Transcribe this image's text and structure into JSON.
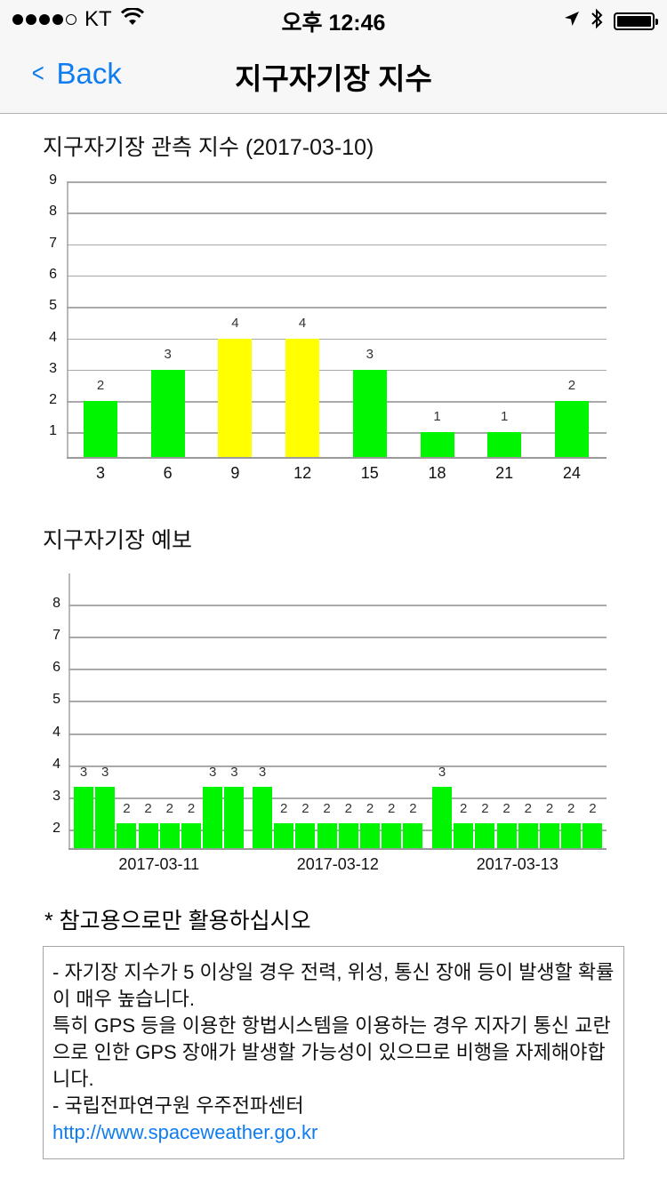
{
  "status_bar": {
    "signal_dots_filled": 4,
    "signal_dots_total": 5,
    "carrier": "KT",
    "time": "오후 12:46",
    "icons": [
      "wifi-icon",
      "location-arrow-icon",
      "bluetooth-icon",
      "battery-icon"
    ]
  },
  "nav": {
    "back_label": "Back",
    "title": "지구자기장 지수"
  },
  "observed": {
    "title": "지구자기장 관측 지수 (2017-03-10)"
  },
  "forecast": {
    "title": "지구자기장 예보"
  },
  "note": "* 참고용으로만 활용하십시오",
  "info": {
    "line1": "- 자기장 지수가 5 이상일 경우 전력, 위성, 통신 장애 등이 발생할 확률이 매우 높습니다.",
    "line2": "특히 GPS 등을 이용한 항법시스템을 이용하는 경우 지자기 통신 교란으로 인한 GPS 장애가 발생할 가능성이 있으므로 비행을 자제해야합니다.",
    "line3": "- 국립전파연구원 우주전파센터",
    "link": "http://www.spaceweather.go.kr"
  },
  "colors": {
    "green": "#00f500",
    "yellow": "#ffff00",
    "link_blue": "#0f7cf0"
  },
  "chart_data": [
    {
      "type": "bar",
      "title": "지구자기장 관측 지수 (2017-03-10)",
      "xlabel": "",
      "ylabel": "",
      "categories": [
        "3",
        "6",
        "9",
        "12",
        "15",
        "18",
        "21",
        "24"
      ],
      "values": [
        2,
        3,
        4,
        4,
        3,
        1,
        1,
        2
      ],
      "colors": [
        "#00f500",
        "#00f500",
        "#ffff00",
        "#ffff00",
        "#00f500",
        "#00f500",
        "#00f500",
        "#00f500"
      ],
      "y_ticks": [
        "1",
        "2",
        "3",
        "4",
        "5",
        "6",
        "7",
        "8",
        "9"
      ],
      "ylim": [
        0,
        9
      ],
      "grid": true,
      "data_labels": true,
      "legend": "none"
    },
    {
      "type": "bar",
      "title": "지구자기장 예보",
      "xlabel": "",
      "ylabel": "",
      "groups": [
        {
          "label": "2017-03-11",
          "values": [
            3,
            3,
            2,
            2,
            2,
            2,
            3,
            3
          ]
        },
        {
          "label": "2017-03-12",
          "values": [
            3,
            2,
            2,
            2,
            2,
            2,
            2,
            2
          ]
        },
        {
          "label": "2017-03-13",
          "values": [
            3,
            2,
            2,
            2,
            2,
            2,
            2,
            2
          ]
        }
      ],
      "color": "#00f500",
      "y_ticks": [
        "2",
        "3",
        "4",
        "4",
        "5",
        "6",
        "7",
        "8"
      ],
      "grid": true,
      "data_labels": true,
      "legend": "none"
    }
  ]
}
